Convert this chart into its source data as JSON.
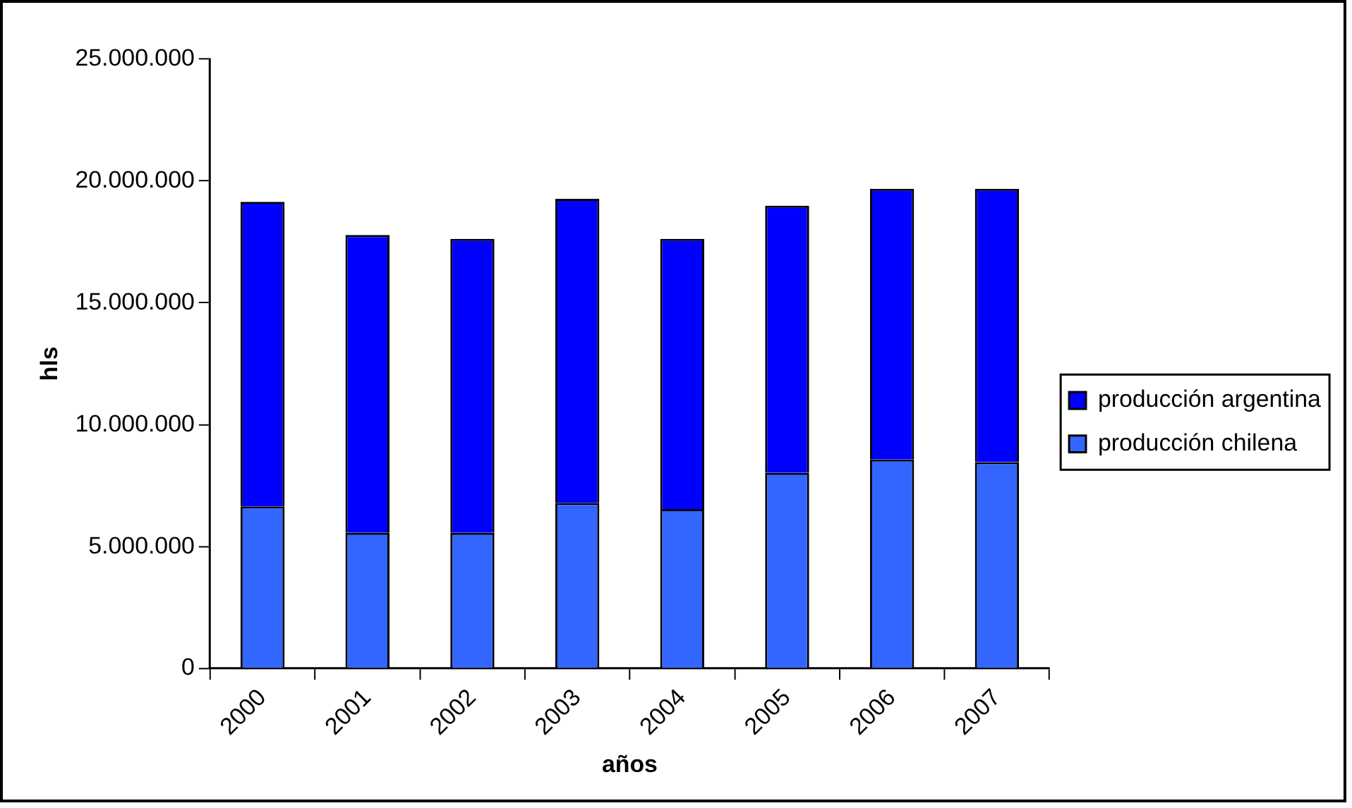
{
  "chart_data": {
    "type": "bar",
    "stacked": true,
    "xlabel": "años",
    "ylabel": "hls",
    "categories": [
      "2000",
      "2001",
      "2002",
      "2003",
      "2004",
      "2005",
      "2006",
      "2007"
    ],
    "series": [
      {
        "name": "producción chilena",
        "color": "#3366ff",
        "values": [
          6650000,
          5560000,
          5560000,
          6790000,
          6540000,
          8020000,
          8570000,
          8460000
        ]
      },
      {
        "name": "producción argentina",
        "color": "#0000ff",
        "values": [
          12490000,
          12220000,
          12060000,
          12470000,
          11080000,
          10960000,
          11100000,
          11210000
        ]
      }
    ],
    "ylim": [
      0,
      25000000
    ],
    "yticks": [
      {
        "value": 0,
        "label": "0"
      },
      {
        "value": 5000000,
        "label": "5.000.000"
      },
      {
        "value": 10000000,
        "label": "10.000.000"
      },
      {
        "value": 15000000,
        "label": "15.000.000"
      },
      {
        "value": 20000000,
        "label": "20.000.000"
      },
      {
        "value": 25000000,
        "label": "25.000.000"
      }
    ],
    "grid": false,
    "legend": "right"
  }
}
